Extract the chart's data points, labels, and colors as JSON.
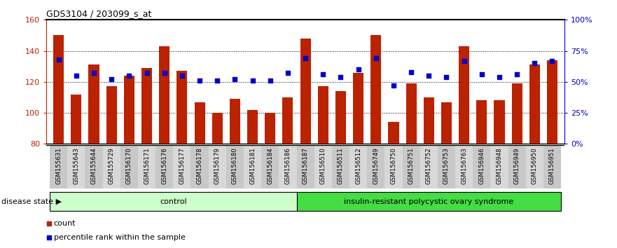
{
  "title": "GDS3104 / 203099_s_at",
  "samples": [
    "GSM155631",
    "GSM155643",
    "GSM155644",
    "GSM155729",
    "GSM156170",
    "GSM156171",
    "GSM156176",
    "GSM156177",
    "GSM156178",
    "GSM156179",
    "GSM156180",
    "GSM156181",
    "GSM156184",
    "GSM156186",
    "GSM156187",
    "GSM156510",
    "GSM156511",
    "GSM156512",
    "GSM156749",
    "GSM156750",
    "GSM156751",
    "GSM156752",
    "GSM156753",
    "GSM156763",
    "GSM156946",
    "GSM156948",
    "GSM156949",
    "GSM156950",
    "GSM156951"
  ],
  "counts": [
    150,
    112,
    131,
    117,
    124,
    129,
    143,
    127,
    107,
    100,
    109,
    102,
    100,
    110,
    148,
    117,
    114,
    126,
    150,
    94,
    119,
    110,
    107,
    143,
    108,
    108,
    119,
    131,
    134
  ],
  "percentile_ranks": [
    68,
    55,
    57,
    52,
    55,
    57,
    57,
    55,
    51,
    51,
    52,
    51,
    51,
    57,
    69,
    56,
    54,
    60,
    69,
    47,
    58,
    55,
    54,
    67,
    56,
    54,
    56,
    65,
    67
  ],
  "group_labels": [
    "control",
    "insulin-resistant polycystic ovary syndrome"
  ],
  "group_sizes": [
    14,
    15
  ],
  "bar_color": "#bb2200",
  "dot_color": "#0000cc",
  "ymin": 80,
  "ymax": 160,
  "yticks": [
    80,
    100,
    120,
    140,
    160
  ],
  "right_yticks": [
    0,
    25,
    50,
    75,
    100
  ],
  "right_yticklabels": [
    "0%",
    "25%",
    "50%",
    "75%",
    "100%"
  ],
  "control_color": "#ccffcc",
  "syndrome_color": "#44dd44",
  "legend_count_label": "count",
  "legend_pct_label": "percentile rank within the sample",
  "disease_state_label": "disease state",
  "bg_color": "#ffffff",
  "xtick_bg_even": "#c8c8c8",
  "xtick_bg_odd": "#d8d8d8"
}
